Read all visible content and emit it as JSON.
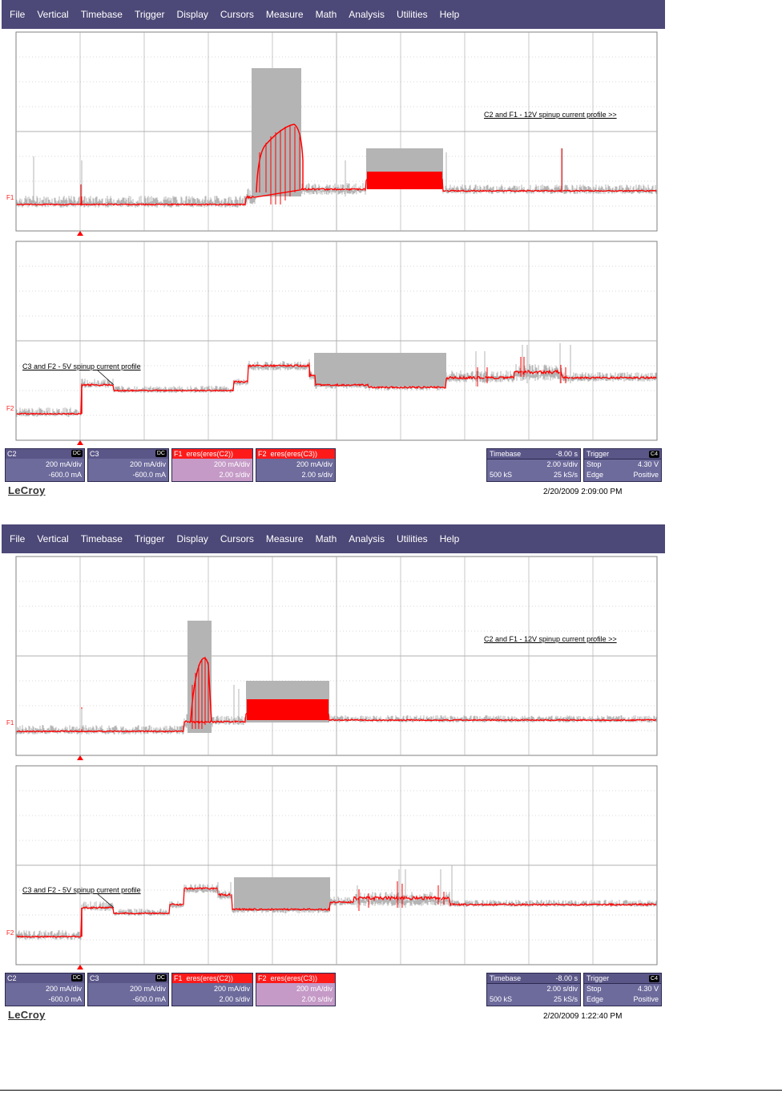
{
  "menu": [
    "File",
    "Vertical",
    "Timebase",
    "Trigger",
    "Display",
    "Cursors",
    "Measure",
    "Math",
    "Analysis",
    "Utilities",
    "Help"
  ],
  "colors": {
    "menubar": "#4c4877",
    "trace_raw": "#b4b4b4",
    "trace_math": "#ff0000",
    "grid": "#b0b0b0"
  },
  "brand": "LeCroy",
  "captures": [
    {
      "upper_label": "C2 and F1 - 12V spinup current profile >>",
      "lower_label": "C3 and F2 - 5V spinup current profile",
      "trace_labels": {
        "upper": "F1",
        "lower": "F2"
      },
      "channels": [
        {
          "name": "C2",
          "coupling": "DC",
          "scale": "200 mA/div",
          "offset": "-600.0 mA"
        },
        {
          "name": "C3",
          "coupling": "DC",
          "scale": "200 mA/div",
          "offset": "-600.0 mA"
        }
      ],
      "math": [
        {
          "id": "F1",
          "func": "eres(eres(C2))",
          "scale": "200 mA/div",
          "time": "2.00 s/div",
          "selected": true
        },
        {
          "id": "F2",
          "func": "eres(eres(C3))",
          "scale": "200 mA/div",
          "time": "2.00 s/div",
          "selected": false
        }
      ],
      "timebase": {
        "label": "Timebase",
        "delay": "-8.00 s",
        "per_div": "2.00 s/div",
        "samples": "500 kS",
        "rate": "25 kS/s"
      },
      "trigger": {
        "label": "Trigger",
        "source": "C4",
        "mode": "Stop",
        "level": "4.30 V",
        "type": "Edge",
        "slope": "Positive"
      },
      "timestamp": "2/20/2009 2:09:00 PM"
    },
    {
      "upper_label": "C2 and F1 - 12V spinup current profile >>",
      "lower_label": "C3 and F2 - 5V spinup current profile",
      "trace_labels": {
        "upper": "F1",
        "lower": "F2"
      },
      "channels": [
        {
          "name": "C2",
          "coupling": "DC",
          "scale": "200 mA/div",
          "offset": "-600.0 mA"
        },
        {
          "name": "C3",
          "coupling": "DC",
          "scale": "200 mA/div",
          "offset": "-600.0 mA"
        }
      ],
      "math": [
        {
          "id": "F1",
          "func": "eres(eres(C2))",
          "scale": "200 mA/div",
          "time": "2.00 s/div",
          "selected": false
        },
        {
          "id": "F2",
          "func": "eres(eres(C3))",
          "scale": "200 mA/div",
          "time": "2.00 s/div",
          "selected": true
        }
      ],
      "timebase": {
        "label": "Timebase",
        "delay": "-8.00 s",
        "per_div": "2.00 s/div",
        "samples": "500 kS",
        "rate": "25 kS/s"
      },
      "trigger": {
        "label": "Trigger",
        "source": "C4",
        "mode": "Stop",
        "level": "4.30 V",
        "type": "Edge",
        "slope": "Positive"
      },
      "timestamp": "2/20/2009 1:22:40 PM"
    }
  ]
}
